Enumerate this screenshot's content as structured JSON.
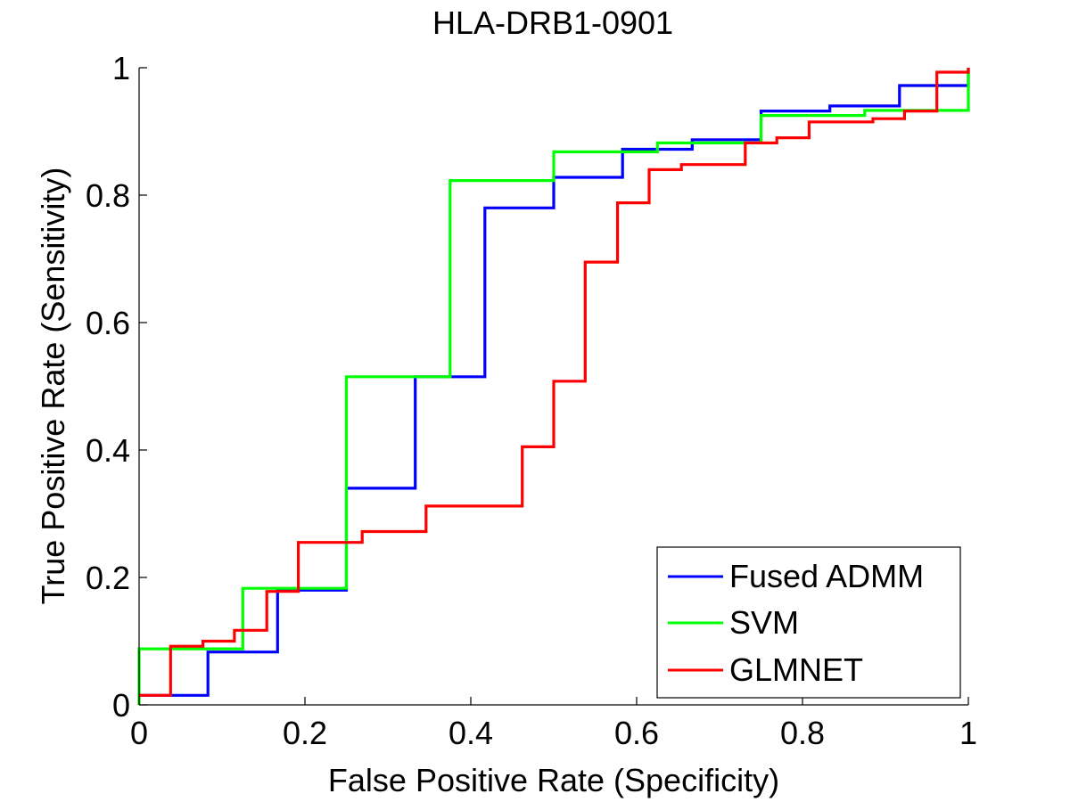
{
  "chart_data": {
    "type": "line",
    "title": "HLA-DRB1-0901",
    "xlabel": "False Positive Rate (Specificity)",
    "ylabel": "True Positive Rate (Sensitivity)",
    "xlim": [
      0,
      1
    ],
    "ylim": [
      0,
      1
    ],
    "x_ticks": [
      0,
      0.2,
      0.4,
      0.6,
      0.8,
      1
    ],
    "y_ticks": [
      0,
      0.2,
      0.4,
      0.6,
      0.8,
      1
    ],
    "x_tick_labels": [
      "0",
      "0.2",
      "0.4",
      "0.6",
      "0.8",
      "1"
    ],
    "y_tick_labels": [
      "0",
      "0.2",
      "0.4",
      "0.6",
      "0.8",
      "1"
    ],
    "grid": false,
    "legend_position": "bottom-right",
    "series": [
      {
        "name": "Fused ADMM",
        "color": "#0000ff",
        "x": [
          0,
          0.083,
          0.083,
          0.167,
          0.167,
          0.25,
          0.25,
          0.333,
          0.333,
          0.417,
          0.417,
          0.5,
          0.5,
          0.583,
          0.583,
          0.667,
          0.667,
          0.75,
          0.75,
          0.833,
          0.833,
          0.917,
          0.917,
          1,
          1
        ],
        "y": [
          0.015,
          0.015,
          0.083,
          0.083,
          0.18,
          0.18,
          0.34,
          0.34,
          0.515,
          0.515,
          0.78,
          0.78,
          0.828,
          0.828,
          0.872,
          0.872,
          0.887,
          0.887,
          0.932,
          0.932,
          0.94,
          0.94,
          0.972,
          0.972,
          1.0
        ]
      },
      {
        "name": "SVM",
        "color": "#00ff00",
        "x": [
          0,
          0,
          0.125,
          0.125,
          0.25,
          0.25,
          0.375,
          0.375,
          0.5,
          0.5,
          0.625,
          0.625,
          0.75,
          0.75,
          0.875,
          0.875,
          1,
          1
        ],
        "y": [
          0,
          0.088,
          0.088,
          0.183,
          0.183,
          0.515,
          0.515,
          0.823,
          0.823,
          0.868,
          0.868,
          0.882,
          0.882,
          0.925,
          0.925,
          0.933,
          0.933,
          1.0
        ]
      },
      {
        "name": "GLMNET",
        "color": "#ff0000",
        "x": [
          0,
          0.038,
          0.038,
          0.077,
          0.077,
          0.115,
          0.115,
          0.154,
          0.154,
          0.192,
          0.192,
          0.269,
          0.269,
          0.346,
          0.346,
          0.462,
          0.462,
          0.5,
          0.5,
          0.538,
          0.538,
          0.577,
          0.577,
          0.615,
          0.615,
          0.654,
          0.654,
          0.731,
          0.731,
          0.769,
          0.769,
          0.808,
          0.808,
          0.885,
          0.885,
          0.923,
          0.923,
          0.962,
          0.962,
          1,
          1
        ],
        "y": [
          0.015,
          0.015,
          0.092,
          0.092,
          0.1,
          0.1,
          0.117,
          0.117,
          0.178,
          0.178,
          0.255,
          0.255,
          0.272,
          0.272,
          0.312,
          0.312,
          0.405,
          0.405,
          0.508,
          0.508,
          0.695,
          0.695,
          0.788,
          0.788,
          0.84,
          0.84,
          0.848,
          0.848,
          0.882,
          0.882,
          0.89,
          0.89,
          0.915,
          0.915,
          0.92,
          0.92,
          0.932,
          0.932,
          0.993,
          0.993,
          1.0
        ]
      }
    ]
  }
}
